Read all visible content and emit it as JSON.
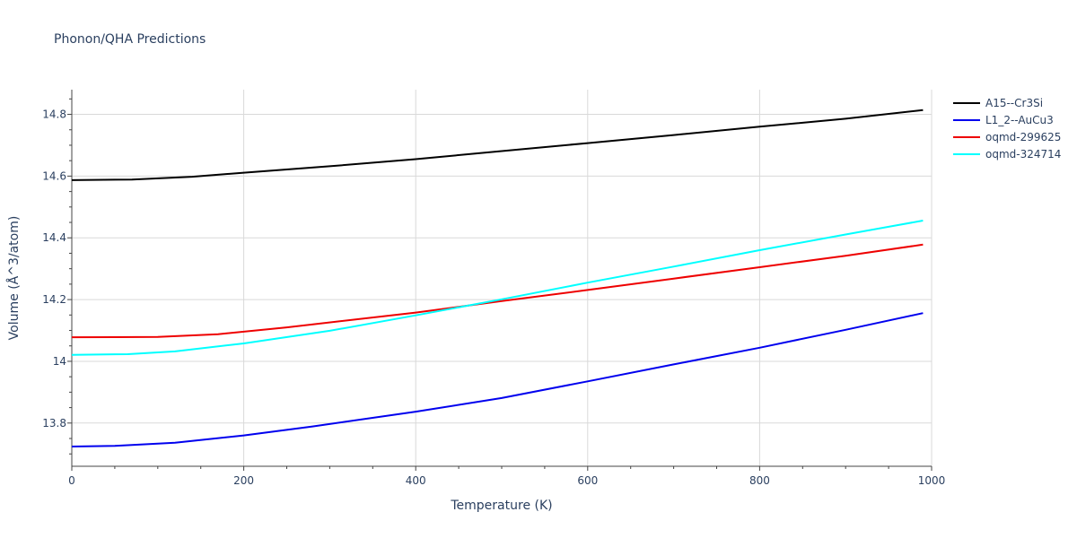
{
  "chart_data": {
    "type": "line",
    "title": "Phonon/QHA Predictions",
    "xlabel": "Temperature (K)",
    "ylabel": "Volume (Å^3/atom)",
    "xlim": [
      0,
      1000
    ],
    "ylim": [
      13.66,
      14.88
    ],
    "x_ticks": [
      0,
      200,
      400,
      600,
      800,
      1000
    ],
    "x_tick_labels": [
      "0",
      "200",
      "400",
      "600",
      "800",
      "1000"
    ],
    "y_ticks": [
      13.8,
      14,
      14.2,
      14.4,
      14.6,
      14.8
    ],
    "y_tick_labels": [
      "13.8",
      "14",
      "14.2",
      "14.4",
      "14.6",
      "14.8"
    ],
    "grid": true,
    "legend_position": "top-right",
    "series": [
      {
        "name": "A15--Cr3Si",
        "color": "#000000",
        "x": [
          0,
          70,
          140,
          200,
          300,
          400,
          500,
          600,
          700,
          800,
          900,
          990
        ],
        "y": [
          14.587,
          14.589,
          14.598,
          14.611,
          14.632,
          14.655,
          14.681,
          14.707,
          14.733,
          14.76,
          14.786,
          14.814
        ]
      },
      {
        "name": "L1_2--AuCu3",
        "color": "#0000ee",
        "x": [
          0,
          50,
          120,
          200,
          280,
          400,
          500,
          600,
          700,
          800,
          900,
          990
        ],
        "y": [
          13.724,
          13.726,
          13.736,
          13.76,
          13.789,
          13.837,
          13.881,
          13.935,
          13.99,
          14.044,
          14.102,
          14.156
        ]
      },
      {
        "name": "oqmd-299625",
        "color": "#ee0000",
        "x": [
          0,
          100,
          170,
          250,
          400,
          500,
          600,
          700,
          800,
          900,
          990
        ],
        "y": [
          14.078,
          14.079,
          14.088,
          14.11,
          14.158,
          14.195,
          14.231,
          14.268,
          14.305,
          14.342,
          14.378
        ]
      },
      {
        "name": "oqmd-324714",
        "color": "#00ffff",
        "x": [
          0,
          65,
          120,
          200,
          300,
          400,
          500,
          600,
          700,
          800,
          900,
          990
        ],
        "y": [
          14.021,
          14.023,
          14.032,
          14.058,
          14.099,
          14.149,
          14.201,
          14.255,
          14.307,
          14.36,
          14.411,
          14.456
        ]
      }
    ]
  }
}
